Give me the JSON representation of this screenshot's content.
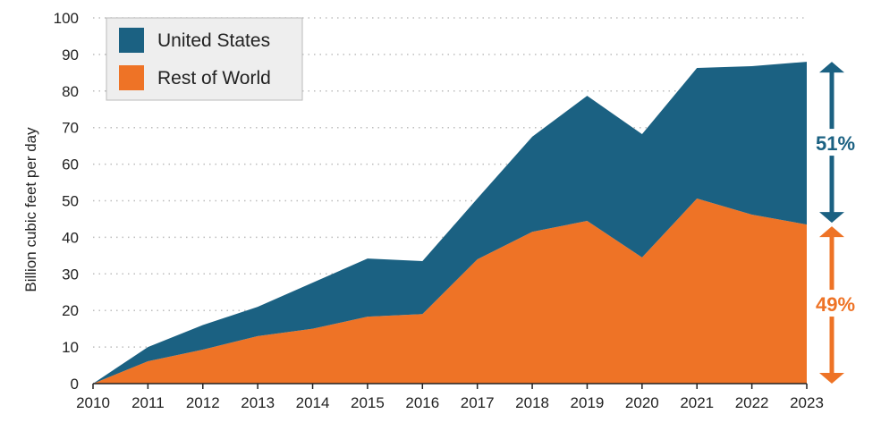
{
  "chart_data": {
    "type": "area",
    "stacked": true,
    "title": "",
    "xlabel": "",
    "ylabel": "Billion cubic feet per day",
    "ylim": [
      0,
      100
    ],
    "yticks": [
      0,
      10,
      20,
      30,
      40,
      50,
      60,
      70,
      80,
      90,
      100
    ],
    "grid": "horizontal dotted",
    "legend_placement": "top-left",
    "categories": [
      "2010",
      "2011",
      "2012",
      "2013",
      "2014",
      "2015",
      "2016",
      "2017",
      "2018",
      "2019",
      "2020",
      "2021",
      "2022",
      "2023"
    ],
    "series": [
      {
        "name": "Rest of World",
        "color": "#ee7326",
        "values": [
          0,
          6.1,
          9.3,
          13,
          15,
          18.3,
          19,
          34,
          41.5,
          44.5,
          34.5,
          50.6,
          46.2,
          43.5
        ]
      },
      {
        "name": "United States",
        "color": "#1b6182",
        "values": [
          0,
          3.9,
          6.7,
          8,
          12.6,
          15.9,
          14.5,
          16.6,
          26,
          34.2,
          33.7,
          35.7,
          40.6,
          44.5
        ]
      }
    ],
    "annotations": [
      {
        "text": "51%",
        "series": "United States",
        "color": "#1b6182"
      },
      {
        "text": "49%",
        "series": "Rest of World",
        "color": "#ee7326"
      }
    ]
  }
}
